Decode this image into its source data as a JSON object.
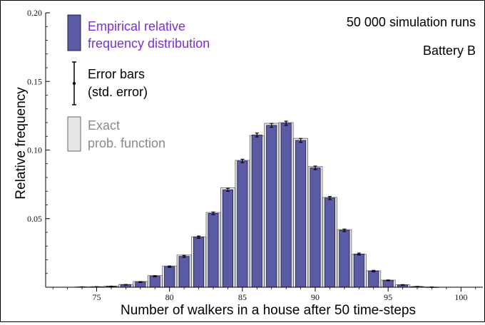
{
  "colors": {
    "bar_fill": "#5b5aa5",
    "bar_stroke": "#1e1e4a",
    "exact_fill": "#e6e6e6",
    "exact_stroke": "#6a6a6a",
    "legend_empirical_text": "#7b2fd6",
    "legend_exact_text": "#8a8a8a"
  },
  "chart_data": {
    "type": "bar",
    "xlabel": "Number of walkers in a house after 50 time-steps",
    "ylabel": "Relative frequency",
    "xlim": [
      71.5,
      101.5
    ],
    "ylim": [
      0,
      0.2
    ],
    "x_ticks": [
      75,
      80,
      85,
      90,
      95,
      100
    ],
    "y_ticks": [
      0.05,
      0.1,
      0.15,
      0.2
    ],
    "x_tick_labels": [
      "75",
      "80",
      "85",
      "90",
      "95",
      "100"
    ],
    "y_tick_labels": [
      "0.05",
      "0.10",
      "0.15",
      "0.20"
    ],
    "legend": {
      "empirical": [
        "Empirical relative",
        "frequency distribution"
      ],
      "errorbars": [
        "Error bars",
        "(std. error)"
      ],
      "exact": [
        "Exact",
        "prob. function"
      ]
    },
    "annotations": [
      "50 000 simulation runs",
      "Battery B"
    ],
    "x": [
      74,
      75,
      76,
      77,
      78,
      79,
      80,
      81,
      82,
      83,
      84,
      85,
      86,
      87,
      88,
      89,
      90,
      91,
      92,
      93,
      94,
      95,
      96,
      97,
      98
    ],
    "series": [
      {
        "name": "Empirical relative frequency distribution",
        "values": [
          0.0002,
          0.0003,
          0.0007,
          0.0018,
          0.0038,
          0.008,
          0.015,
          0.0225,
          0.0365,
          0.0538,
          0.071,
          0.092,
          0.111,
          0.118,
          0.1195,
          0.107,
          0.087,
          0.065,
          0.0415,
          0.0242,
          0.0118,
          0.005,
          0.0017,
          0.0005,
          0.0001
        ],
        "errors": [
          0.0001,
          0.0001,
          0.0001,
          0.0002,
          0.0003,
          0.0004,
          0.0005,
          0.0007,
          0.0008,
          0.001,
          0.0011,
          0.0013,
          0.0014,
          0.0014,
          0.0015,
          0.0014,
          0.0013,
          0.0011,
          0.0009,
          0.0007,
          0.0005,
          0.0003,
          0.0002,
          0.0001,
          0.0001
        ]
      },
      {
        "name": "Exact prob. function",
        "values": [
          0.0002,
          0.0004,
          0.0008,
          0.002,
          0.0042,
          0.0085,
          0.0155,
          0.0235,
          0.0368,
          0.0545,
          0.0725,
          0.0925,
          0.1105,
          0.1195,
          0.12,
          0.1085,
          0.088,
          0.0655,
          0.042,
          0.024,
          0.012,
          0.0052,
          0.0018,
          0.0005,
          0.0001
        ]
      }
    ]
  }
}
